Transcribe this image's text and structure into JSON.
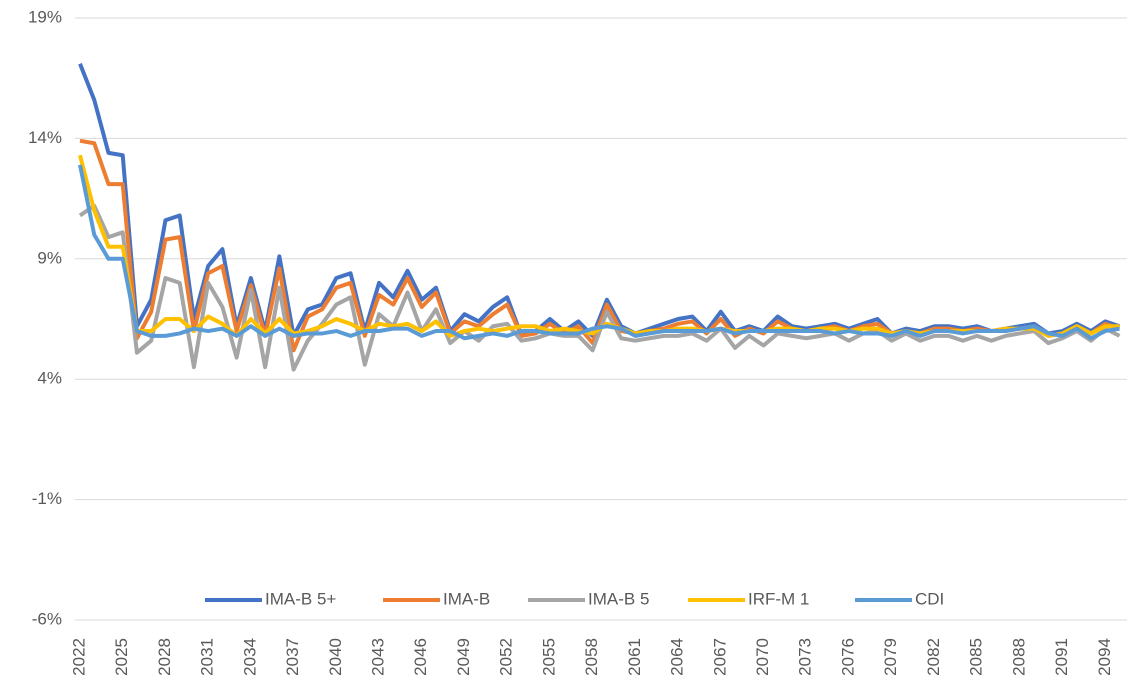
{
  "chart_data": {
    "type": "line",
    "categories": [
      "2022",
      null,
      null,
      "2025",
      null,
      null,
      "2028",
      null,
      null,
      "2031",
      null,
      null,
      "2034",
      null,
      null,
      "2037",
      null,
      null,
      "2040",
      null,
      null,
      "2043",
      null,
      null,
      "2046",
      null,
      null,
      "2049",
      null,
      null,
      "2052",
      null,
      null,
      "2055",
      null,
      null,
      "2058",
      null,
      null,
      "2061",
      null,
      null,
      "2064",
      null,
      null,
      "2067",
      null,
      null,
      "2070",
      null,
      null,
      "2073",
      null,
      null,
      "2076",
      null,
      null,
      "2079",
      null,
      null,
      "2082",
      null,
      null,
      "2085",
      null,
      null,
      "2088",
      null,
      null,
      "2091",
      null,
      null,
      "2094",
      null
    ],
    "series": [
      {
        "name": "IMA-B 5+",
        "color": "#4472c4",
        "values": [
          17.1,
          15.6,
          13.4,
          13.3,
          6.2,
          7.3,
          10.6,
          10.8,
          6.5,
          8.7,
          9.4,
          6.2,
          8.2,
          6.0,
          9.1,
          5.8,
          6.9,
          7.1,
          8.2,
          8.4,
          6.0,
          8.0,
          7.4,
          8.5,
          7.3,
          7.8,
          6.0,
          6.7,
          6.4,
          7.0,
          7.4,
          5.8,
          6.0,
          6.5,
          6.0,
          6.4,
          5.8,
          7.3,
          6.2,
          5.9,
          6.1,
          6.3,
          6.5,
          6.6,
          6.0,
          6.8,
          6.0,
          6.2,
          6.0,
          6.6,
          6.2,
          6.1,
          6.2,
          6.3,
          6.1,
          6.3,
          6.5,
          5.9,
          6.1,
          6.0,
          6.2,
          6.2,
          6.1,
          6.2,
          6.0,
          6.1,
          6.2,
          6.3,
          5.9,
          6.0,
          6.3,
          6.0,
          6.4,
          6.2
        ]
      },
      {
        "name": "IMA-B",
        "color": "#ed7d31",
        "values": [
          13.9,
          13.8,
          12.1,
          12.1,
          5.7,
          6.8,
          9.8,
          9.9,
          6.0,
          8.4,
          8.7,
          6.0,
          7.9,
          5.8,
          8.6,
          5.2,
          6.6,
          6.9,
          7.8,
          8.0,
          5.8,
          7.5,
          7.1,
          8.2,
          7.0,
          7.6,
          5.9,
          6.4,
          6.2,
          6.7,
          7.1,
          5.8,
          5.9,
          6.3,
          5.9,
          6.2,
          5.5,
          7.1,
          6.0,
          5.9,
          6.0,
          6.1,
          6.3,
          6.4,
          5.9,
          6.5,
          5.8,
          6.1,
          5.9,
          6.4,
          6.1,
          6.0,
          6.1,
          6.2,
          6.0,
          6.2,
          6.3,
          5.9,
          6.0,
          5.9,
          6.1,
          6.1,
          6.0,
          6.1,
          6.0,
          6.0,
          6.1,
          6.2,
          5.8,
          5.9,
          6.2,
          5.9,
          6.3,
          6.1
        ]
      },
      {
        "name": "IMA-B 5",
        "color": "#a5a5a5",
        "values": [
          10.8,
          11.2,
          9.9,
          10.1,
          5.1,
          5.6,
          8.2,
          8.0,
          4.5,
          8.0,
          7.0,
          4.9,
          7.7,
          4.5,
          7.8,
          4.4,
          5.6,
          6.3,
          7.1,
          7.4,
          4.6,
          6.7,
          6.2,
          7.6,
          6.0,
          6.9,
          5.5,
          6.0,
          5.6,
          6.2,
          6.3,
          5.6,
          5.7,
          5.9,
          5.8,
          5.8,
          5.2,
          6.8,
          5.7,
          5.6,
          5.7,
          5.8,
          5.8,
          5.9,
          5.6,
          6.1,
          5.3,
          5.8,
          5.4,
          5.9,
          5.8,
          5.7,
          5.8,
          5.9,
          5.6,
          5.9,
          6.0,
          5.6,
          5.9,
          5.6,
          5.8,
          5.8,
          5.6,
          5.8,
          5.6,
          5.8,
          5.9,
          6.0,
          5.5,
          5.7,
          6.0,
          5.6,
          6.1,
          5.8
        ]
      },
      {
        "name": "IRF-M 1",
        "color": "#ffc000",
        "values": [
          13.3,
          11.0,
          9.5,
          9.5,
          6.0,
          6.0,
          6.5,
          6.5,
          6.0,
          6.6,
          6.3,
          5.8,
          6.5,
          5.9,
          6.5,
          5.9,
          6.0,
          6.2,
          6.5,
          6.3,
          6.0,
          6.3,
          6.2,
          6.3,
          6.0,
          6.4,
          5.8,
          6.0,
          6.1,
          6.0,
          6.1,
          6.2,
          6.2,
          6.0,
          6.1,
          6.0,
          5.9,
          6.3,
          6.1,
          5.9,
          6.0,
          6.0,
          6.1,
          6.1,
          6.0,
          6.1,
          6.0,
          6.0,
          6.0,
          6.1,
          6.1,
          6.0,
          6.1,
          6.1,
          6.0,
          6.1,
          6.1,
          5.9,
          6.0,
          5.9,
          6.0,
          6.0,
          6.0,
          6.0,
          6.0,
          6.1,
          6.1,
          6.1,
          5.8,
          5.9,
          6.2,
          5.9,
          6.2,
          6.2
        ]
      },
      {
        "name": "CDI",
        "color": "#5b9bd5",
        "values": [
          12.9,
          10.0,
          9.0,
          9.0,
          6.0,
          5.8,
          5.8,
          5.9,
          6.1,
          6.0,
          6.1,
          5.8,
          6.2,
          5.8,
          6.1,
          5.8,
          5.9,
          5.9,
          6.0,
          5.8,
          6.0,
          6.0,
          6.1,
          6.1,
          5.8,
          6.0,
          6.0,
          5.7,
          5.8,
          5.9,
          5.8,
          6.0,
          6.0,
          5.9,
          5.9,
          5.9,
          6.1,
          6.2,
          6.1,
          5.8,
          5.9,
          6.0,
          6.0,
          6.0,
          6.0,
          6.1,
          5.9,
          6.0,
          6.0,
          6.0,
          6.0,
          6.0,
          6.0,
          5.9,
          6.0,
          5.9,
          5.9,
          5.8,
          6.0,
          5.8,
          6.0,
          6.0,
          5.9,
          6.0,
          6.0,
          6.0,
          6.1,
          6.2,
          5.9,
          5.8,
          6.1,
          5.7,
          6.0,
          6.1
        ]
      }
    ],
    "ylim": [
      -6,
      19
    ],
    "yticks": [
      {
        "value": -6,
        "label": "-6%"
      },
      {
        "value": -1,
        "label": "-1%"
      },
      {
        "value": 4,
        "label": "4%"
      },
      {
        "value": 9,
        "label": "9%"
      },
      {
        "value": 14,
        "label": "14%"
      },
      {
        "value": 19,
        "label": "19%"
      }
    ],
    "grid": true,
    "legend": "bottom"
  }
}
